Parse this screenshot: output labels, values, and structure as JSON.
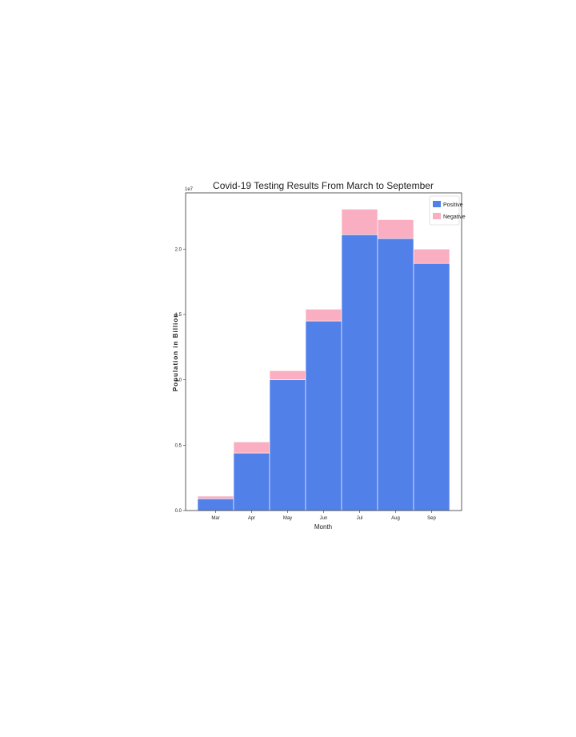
{
  "chart_data": {
    "type": "bar",
    "stacked": true,
    "title": "Covid-19 Testing Results From March to September",
    "xlabel": "Month",
    "ylabel": "Population in Billion",
    "y_scale_label": "1e7",
    "categories": [
      "Mar",
      "Apr",
      "May",
      "Jun",
      "Jul",
      "Aug",
      "Sep"
    ],
    "y_ticks": [
      0.0,
      0.5,
      1.0,
      1.5,
      2.0
    ],
    "y_tick_labels": [
      "0.0",
      "0.5",
      "1.0",
      "1.5",
      "2.0"
    ],
    "ylim": [
      0,
      2.43
    ],
    "grid": false,
    "legend_position": "top-right",
    "series": [
      {
        "name": "Positive",
        "color": "#5280e9",
        "values": [
          0.09,
          0.44,
          1.0,
          1.45,
          2.11,
          2.08,
          1.89
        ]
      },
      {
        "name": "Negative",
        "color": "#f9afc1",
        "values": [
          0.02,
          0.085,
          0.07,
          0.09,
          0.195,
          0.145,
          0.11
        ]
      }
    ]
  }
}
